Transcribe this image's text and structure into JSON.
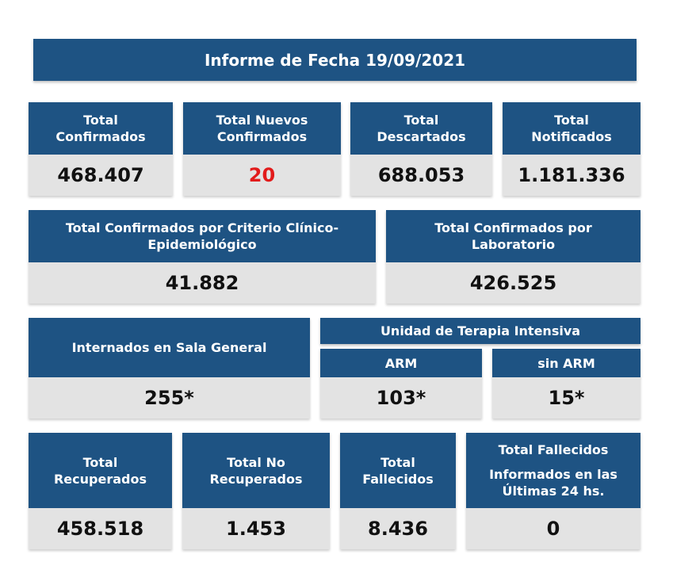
{
  "title": "Informe de Fecha 19/09/2021",
  "row1": [
    {
      "label_1": "Total",
      "label_2": "Confirmados",
      "value": "468.407"
    },
    {
      "label_1": "Total Nuevos",
      "label_2": "Confirmados",
      "value": "20"
    },
    {
      "label_1": "Total",
      "label_2": "Descartados",
      "value": "688.053"
    },
    {
      "label_1": "Total",
      "label_2": "Notificados",
      "value": "1.181.336"
    }
  ],
  "row2": [
    {
      "label_1": "Total Confirmados por Criterio Clínico-",
      "label_2": "Epidemiológico",
      "value": "41.882"
    },
    {
      "label_1": "Total Confirmados por",
      "label_2": "Laboratorio",
      "value": "426.525"
    }
  ],
  "row3": {
    "sala_general": {
      "label": "Internados en Sala General",
      "value": "255*"
    },
    "uti": {
      "label": "Unidad de Terapia Intensiva",
      "arm": {
        "label": "ARM",
        "value": "103*"
      },
      "sin_arm": {
        "label": "sin ARM",
        "value": "15*"
      }
    }
  },
  "row4": [
    {
      "label_1": "Total",
      "label_2": "Recuperados",
      "value": "458.518"
    },
    {
      "label_1": "Total No",
      "label_2": "Recuperados",
      "value": "1.453"
    },
    {
      "label_1": "Total",
      "label_2": "Fallecidos",
      "value": "8.436"
    },
    {
      "label_1": "Total Fallecidos",
      "label_2": "Informados en las",
      "label_3": "Últimas 24 hs.",
      "value": "0"
    }
  ],
  "colors": {
    "header_bg": "#1e5383",
    "value_bg": "#e3e3e3",
    "highlight": "#e21b1b"
  }
}
